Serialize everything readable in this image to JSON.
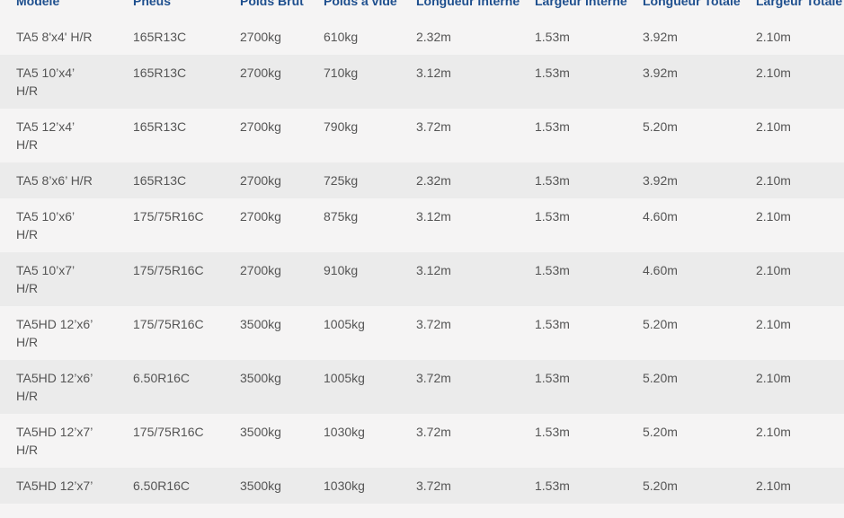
{
  "table": {
    "headers": [
      "Modèle",
      "Pneus",
      "Poids Brut",
      "Poids à vide",
      "Longueur interne",
      "Largeur interne",
      "Longueur Totale",
      "Largeur Totale"
    ],
    "rows": [
      [
        "TA5 8'x4' H/R",
        "165R13C",
        "2700kg",
        "610kg",
        "2.32m",
        "1.53m",
        "3.92m",
        "2.10m"
      ],
      [
        "TA5 10’x4’ H/R",
        "165R13C",
        "2700kg",
        "710kg",
        "3.12m",
        "1.53m",
        "3.92m",
        "2.10m"
      ],
      [
        "TA5 12’x4’ H/R",
        "165R13C",
        "2700kg",
        "790kg",
        "3.72m",
        "1.53m",
        "5.20m",
        "2.10m"
      ],
      [
        "TA5 8’x6’ H/R",
        "165R13C",
        "2700kg",
        "725kg",
        "2.32m",
        "1.53m",
        "3.92m",
        "2.10m"
      ],
      [
        "TA5 10’x6’ H/R",
        "175/75R16C",
        "2700kg",
        "875kg",
        "3.12m",
        "1.53m",
        "4.60m",
        "2.10m"
      ],
      [
        "TA5 10’x7’ H/R",
        "175/75R16C",
        "2700kg",
        "910kg",
        "3.12m",
        "1.53m",
        "4.60m",
        "2.10m"
      ],
      [
        "TA5HD 12’x6’ H/R",
        "175/75R16C",
        "3500kg",
        "1005kg",
        "3.72m",
        "1.53m",
        "5.20m",
        "2.10m"
      ],
      [
        "TA5HD 12’x6’ H/R",
        "6.50R16C",
        "3500kg",
        "1005kg",
        "3.72m",
        "1.53m",
        "5.20m",
        "2.10m"
      ],
      [
        "TA5HD 12’x7’ H/R",
        "175/75R16C",
        "3500kg",
        "1030kg",
        "3.72m",
        "1.53m",
        "5.20m",
        "2.10m"
      ],
      [
        "TA5HD 12’x7’",
        "6.50R16C",
        "3500kg",
        "1030kg",
        "3.72m",
        "1.53m",
        "5.20m",
        "2.10m"
      ]
    ]
  }
}
